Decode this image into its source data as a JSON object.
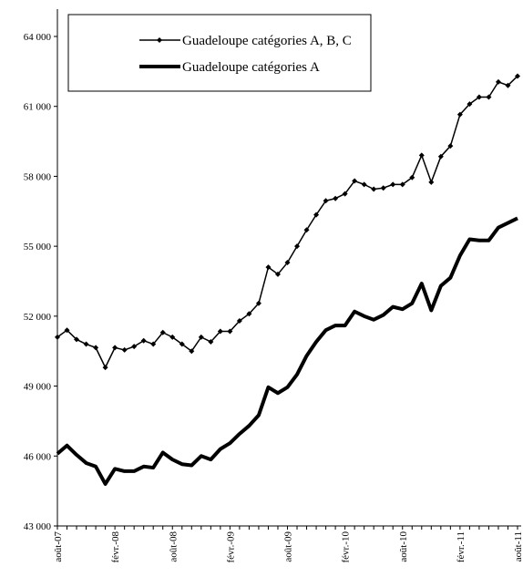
{
  "chart_data": {
    "type": "line",
    "categories": [
      "août-07",
      null,
      null,
      null,
      null,
      null,
      "févr.-08",
      null,
      null,
      null,
      null,
      null,
      "août-08",
      null,
      null,
      null,
      null,
      null,
      "févr.-09",
      null,
      null,
      null,
      null,
      null,
      "août-09",
      null,
      null,
      null,
      null,
      null,
      "févr.-10",
      null,
      null,
      null,
      null,
      null,
      "août-10",
      null,
      null,
      null,
      null,
      null,
      "févr.-11",
      null,
      null,
      null,
      null,
      null,
      "août-11"
    ],
    "series": [
      {
        "name": "Guadeloupe catégories A, B, C",
        "color": "#000000",
        "width": 1.5,
        "markers": true,
        "values": [
          51100,
          51400,
          51000,
          50800,
          50650,
          49800,
          50650,
          50550,
          50700,
          50950,
          50800,
          51300,
          51100,
          50800,
          50500,
          51100,
          50900,
          51350,
          51350,
          51800,
          52100,
          52550,
          54100,
          53800,
          54300,
          55000,
          55700,
          56350,
          56950,
          57050,
          57250,
          57800,
          57650,
          57450,
          57500,
          57650,
          57650,
          57950,
          58900,
          57750,
          58850,
          59300,
          60650,
          61100,
          61400,
          61400,
          62050,
          61900,
          62300
        ]
      },
      {
        "name": "Guadeloupe catégories A",
        "color": "#000000",
        "width": 4,
        "markers": false,
        "values": [
          46100,
          46450,
          46050,
          45700,
          45550,
          44800,
          45450,
          45350,
          45350,
          45550,
          45500,
          46150,
          45850,
          45650,
          45600,
          46000,
          45850,
          46300,
          46550,
          46950,
          47300,
          47750,
          48950,
          48700,
          48950,
          49500,
          50300,
          50900,
          51400,
          51600,
          51600,
          52200,
          52000,
          51850,
          52050,
          52400,
          52300,
          52550,
          53400,
          52250,
          53300,
          53650,
          54600,
          55300,
          55250,
          55250,
          55800,
          56000,
          56200
        ]
      }
    ],
    "ylim": [
      43000,
      64000
    ],
    "yticks": [
      {
        "value": 43000,
        "label": "43 000"
      },
      {
        "value": 46000,
        "label": "46 000"
      },
      {
        "value": 49000,
        "label": "49 000"
      },
      {
        "value": 52000,
        "label": "52 000"
      },
      {
        "value": 55000,
        "label": "55 000"
      },
      {
        "value": 58000,
        "label": "58 000"
      },
      {
        "value": 61000,
        "label": "61 000"
      },
      {
        "value": 64000,
        "label": "64 000"
      }
    ],
    "grid": false
  }
}
